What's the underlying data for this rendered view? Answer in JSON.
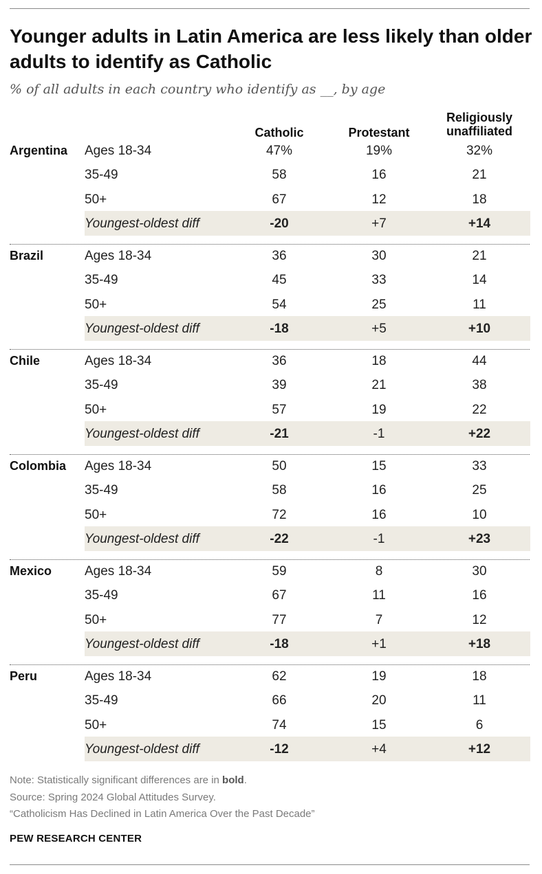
{
  "title": "Younger adults in Latin America are less likely than older adults to identify as Catholic",
  "subtitle": "% of all adults in each country who identify as __, by age",
  "chart_data": {
    "type": "table",
    "columns": [
      "Catholic",
      "Protestant",
      "Religiously unaffiliated"
    ],
    "column_headers": {
      "catholic": "Catholic",
      "protestant": "Protestant",
      "unaffiliated_line1": "Religiously",
      "unaffiliated_line2": "unaffiliated"
    },
    "row_labels": [
      "Ages 18-34",
      "35-49",
      "50+",
      "Youngest-oldest diff"
    ],
    "groups": [
      {
        "country": "Argentina",
        "rows": [
          {
            "label": "Ages 18-34",
            "values": [
              "47%",
              "19%",
              "32%"
            ],
            "bold": [
              false,
              false,
              false
            ]
          },
          {
            "label": "35-49",
            "values": [
              "58",
              "16",
              "21"
            ],
            "bold": [
              false,
              false,
              false
            ]
          },
          {
            "label": "50+",
            "values": [
              "67",
              "12",
              "18"
            ],
            "bold": [
              false,
              false,
              false
            ]
          },
          {
            "label": "Youngest-oldest diff",
            "values": [
              "-20",
              "+7",
              "+14"
            ],
            "bold": [
              true,
              false,
              true
            ]
          }
        ]
      },
      {
        "country": "Brazil",
        "rows": [
          {
            "label": "Ages 18-34",
            "values": [
              "36",
              "30",
              "21"
            ],
            "bold": [
              false,
              false,
              false
            ]
          },
          {
            "label": "35-49",
            "values": [
              "45",
              "33",
              "14"
            ],
            "bold": [
              false,
              false,
              false
            ]
          },
          {
            "label": "50+",
            "values": [
              "54",
              "25",
              "11"
            ],
            "bold": [
              false,
              false,
              false
            ]
          },
          {
            "label": "Youngest-oldest diff",
            "values": [
              "-18",
              "+5",
              "+10"
            ],
            "bold": [
              true,
              false,
              true
            ]
          }
        ]
      },
      {
        "country": "Chile",
        "rows": [
          {
            "label": "Ages 18-34",
            "values": [
              "36",
              "18",
              "44"
            ],
            "bold": [
              false,
              false,
              false
            ]
          },
          {
            "label": "35-49",
            "values": [
              "39",
              "21",
              "38"
            ],
            "bold": [
              false,
              false,
              false
            ]
          },
          {
            "label": "50+",
            "values": [
              "57",
              "19",
              "22"
            ],
            "bold": [
              false,
              false,
              false
            ]
          },
          {
            "label": "Youngest-oldest diff",
            "values": [
              "-21",
              "-1",
              "+22"
            ],
            "bold": [
              true,
              false,
              true
            ]
          }
        ]
      },
      {
        "country": "Colombia",
        "rows": [
          {
            "label": "Ages 18-34",
            "values": [
              "50",
              "15",
              "33"
            ],
            "bold": [
              false,
              false,
              false
            ]
          },
          {
            "label": "35-49",
            "values": [
              "58",
              "16",
              "25"
            ],
            "bold": [
              false,
              false,
              false
            ]
          },
          {
            "label": "50+",
            "values": [
              "72",
              "16",
              "10"
            ],
            "bold": [
              false,
              false,
              false
            ]
          },
          {
            "label": "Youngest-oldest diff",
            "values": [
              "-22",
              "-1",
              "+23"
            ],
            "bold": [
              true,
              false,
              true
            ]
          }
        ]
      },
      {
        "country": "Mexico",
        "rows": [
          {
            "label": "Ages 18-34",
            "values": [
              "59",
              "8",
              "30"
            ],
            "bold": [
              false,
              false,
              false
            ]
          },
          {
            "label": "35-49",
            "values": [
              "67",
              "11",
              "16"
            ],
            "bold": [
              false,
              false,
              false
            ]
          },
          {
            "label": "50+",
            "values": [
              "77",
              "7",
              "12"
            ],
            "bold": [
              false,
              false,
              false
            ]
          },
          {
            "label": "Youngest-oldest diff",
            "values": [
              "-18",
              "+1",
              "+18"
            ],
            "bold": [
              true,
              false,
              true
            ]
          }
        ]
      },
      {
        "country": "Peru",
        "rows": [
          {
            "label": "Ages 18-34",
            "values": [
              "62",
              "19",
              "18"
            ],
            "bold": [
              false,
              false,
              false
            ]
          },
          {
            "label": "35-49",
            "values": [
              "66",
              "20",
              "11"
            ],
            "bold": [
              false,
              false,
              false
            ]
          },
          {
            "label": "50+",
            "values": [
              "74",
              "15",
              "6"
            ],
            "bold": [
              false,
              false,
              false
            ]
          },
          {
            "label": "Youngest-oldest diff",
            "values": [
              "-12",
              "+4",
              "+12"
            ],
            "bold": [
              true,
              false,
              true
            ]
          }
        ]
      }
    ]
  },
  "notes": {
    "note_prefix": "Note: Statistically significant differences are in ",
    "note_bold": "bold",
    "note_suffix": ".",
    "source": "Source: Spring 2024 Global Attitudes Survey.",
    "report": "“Catholicism Has Declined in Latin America Over the Past Decade”"
  },
  "brand": "PEW RESEARCH CENTER",
  "colors": {
    "diff_row_bg": "#eeebe3",
    "text": "#222222",
    "muted": "#7a7a7a"
  }
}
